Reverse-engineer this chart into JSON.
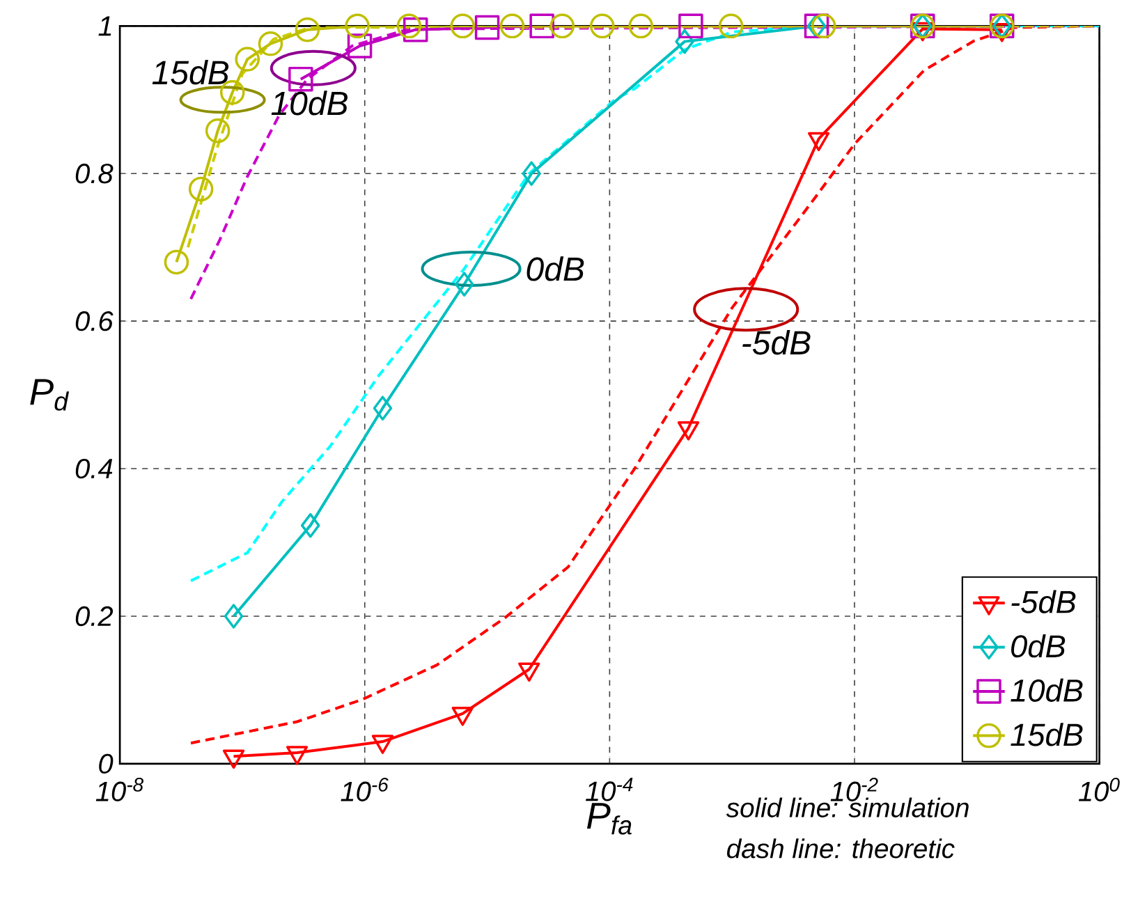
{
  "chart_data": {
    "type": "line",
    "xlabel": "P$_{fa}$",
    "ylabel": "P$_{d}$",
    "log": "x",
    "grid": true,
    "legend": "bottom right",
    "xlim": [
      1e-08,
      1
    ],
    "ylim": [
      0,
      1
    ],
    "xticks": [
      {
        "value": 1e-08,
        "label": "10$^{-8}$"
      },
      {
        "value": 1e-06,
        "label": "10$^{-6}$"
      },
      {
        "value": 0.0001,
        "label": "10$^{-4}$"
      },
      {
        "value": 0.01,
        "label": "10$^{-2}$"
      },
      {
        "value": 1,
        "label": "10$^{0}$"
      }
    ],
    "yticks": [
      0,
      0.2,
      0.4,
      0.6,
      0.8,
      1
    ],
    "series": [
      {
        "name": "-5dB",
        "color": "#ff0000",
        "marker": "triangle",
        "line_style": "solid",
        "x": [
          8.5e-08,
          2.8e-07,
          1.4e-06,
          6.3e-06,
          2.2e-05,
          0.00044,
          0.0051,
          0.036,
          0.16
        ],
        "values": [
          0.01,
          0.015,
          0.03,
          0.068,
          0.128,
          0.455,
          0.847,
          0.996,
          0.995
        ]
      },
      {
        "name": "0dB",
        "color": "#00bfbf",
        "marker": "diamond",
        "line_style": "solid",
        "x": [
          8.5e-08,
          3.6e-07,
          1.4e-06,
          6.5e-06,
          2.3e-05,
          0.00041,
          0.0049,
          0.036,
          0.16
        ],
        "values": [
          0.2,
          0.323,
          0.482,
          0.65,
          0.8,
          0.979,
          1,
          1,
          1
        ]
      },
      {
        "name": "10dB",
        "color": "#bf00bf",
        "marker": "square",
        "line_style": "solid",
        "x": [
          3e-07,
          9.1e-07,
          2.6e-06,
          1e-05,
          2.8e-05,
          0.00046,
          0.0049,
          0.036,
          0.16
        ],
        "values": [
          0.928,
          0.973,
          0.995,
          0.998,
          1,
          1,
          1,
          1,
          1
        ]
      },
      {
        "name": "15dB",
        "color": "#bfbf00",
        "marker": "circle",
        "line_style": "solid",
        "x": [
          2.9e-08,
          4.6e-08,
          6.3e-08,
          8.3e-08,
          1.1e-07,
          1.7e-07,
          3.4e-07,
          8.7e-07,
          2.3e-06,
          6.3e-06,
          1.6e-05,
          4.1e-05,
          8.7e-05,
          0.00018,
          0.00098,
          0.0056,
          0.036,
          0.16
        ],
        "values": [
          0.68,
          0.779,
          0.858,
          0.91,
          0.955,
          0.976,
          0.995,
          1,
          1,
          1,
          1,
          1,
          1,
          1,
          1,
          1,
          1,
          1
        ]
      },
      {
        "color": "#ff0000",
        "marker": "none",
        "line_style": "dashed",
        "x": [
          3.8e-08,
          2.8e-07,
          9.5e-07,
          3.9e-06,
          1.4e-05,
          4.6e-05,
          0.0001,
          0.00016,
          0.001,
          0.0047,
          0.01,
          0.037,
          0.095,
          0.2,
          1
        ],
        "values": [
          0.028,
          0.057,
          0.087,
          0.134,
          0.198,
          0.267,
          0.35,
          0.4,
          0.618,
          0.766,
          0.84,
          0.94,
          0.98,
          0.998,
          1
        ]
      },
      {
        "color": "#00ffff",
        "marker": "none",
        "line_style": "dashed",
        "x": [
          3.8e-08,
          1.1e-07,
          2.1e-07,
          5.2e-07,
          1.3e-06,
          6.5e-06,
          2.2e-05,
          0.00011,
          0.00016,
          0.00041,
          0.001,
          0.0049,
          1
        ],
        "values": [
          0.248,
          0.286,
          0.355,
          0.43,
          0.526,
          0.671,
          0.8,
          0.9,
          0.915,
          0.968,
          0.992,
          1,
          1
        ]
      },
      {
        "color": "#cc00cc",
        "marker": "none",
        "line_style": "dashed",
        "x": [
          3.8e-08,
          6.5e-08,
          1.1e-07,
          2e-07,
          3.4e-07,
          7.9e-07,
          2.3e-06,
          1
        ],
        "values": [
          0.63,
          0.709,
          0.796,
          0.879,
          0.928,
          0.973,
          0.996,
          1
        ]
      },
      {
        "color": "#cccc00",
        "marker": "none",
        "line_style": "dashed",
        "x": [
          3.6e-08,
          6.2e-08,
          1e-07,
          1.8e-07,
          3.6e-07,
          1
        ],
        "values": [
          0.7,
          0.834,
          0.935,
          0.982,
          0.998,
          1
        ]
      }
    ],
    "annotations": [
      {
        "text": "-5dB",
        "x": 0.0013,
        "y": 0.616
      },
      {
        "text": "0dB",
        "x": 7.4e-06,
        "y": 0.671
      },
      {
        "text": "10dB",
        "x": 3.8e-07,
        "y": 0.943
      },
      {
        "text": "15dB",
        "x": 6.9e-08,
        "y": 0.9
      },
      "solid line: simulation",
      "dash line: theoretic"
    ]
  }
}
